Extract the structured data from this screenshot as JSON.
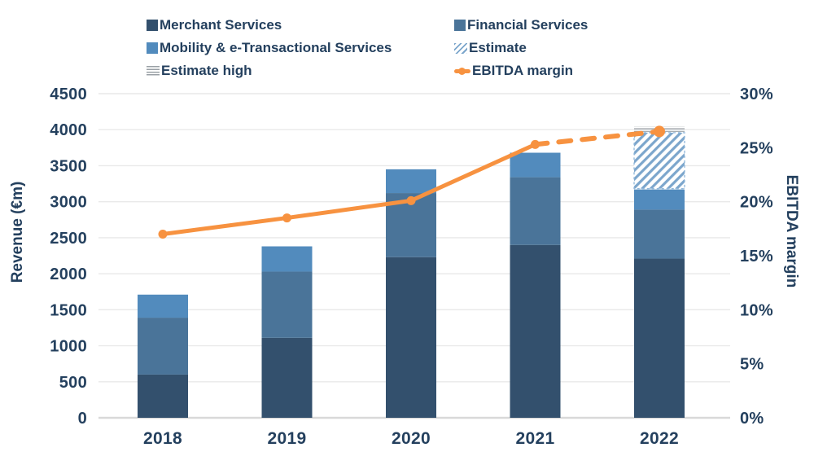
{
  "legend": {
    "items": [
      {
        "label": "Merchant Services",
        "swatch": "solid",
        "color": "#33506d"
      },
      {
        "label": "Financial Services",
        "swatch": "solid",
        "color": "#4a7499"
      },
      {
        "label": "Mobility & e-Transactional Services",
        "swatch": "solid",
        "color": "#528bbd"
      },
      {
        "label": "Estimate",
        "swatch": "hatch",
        "color": "#7ca6cc"
      },
      {
        "label": "Estimate high",
        "swatch": "hlines",
        "color": "#9aa0a6"
      },
      {
        "label": "EBITDA margin",
        "swatch": "line-dot",
        "color": "#f79240"
      }
    ]
  },
  "chart_data": {
    "type": "bar",
    "subtype": "stacked-bars-with-line-overlay",
    "categories": [
      "2018",
      "2019",
      "2020",
      "2021",
      "2022"
    ],
    "series": [
      {
        "name": "Merchant Services",
        "kind": "bar",
        "color": "#33506d",
        "values": [
          600,
          1110,
          2230,
          2400,
          2210
        ]
      },
      {
        "name": "Financial Services",
        "kind": "bar",
        "color": "#4a7499",
        "values": [
          790,
          920,
          890,
          940,
          680
        ]
      },
      {
        "name": "Mobility & e-Transactional Services",
        "kind": "bar",
        "color": "#528bbd",
        "values": [
          320,
          350,
          330,
          340,
          280
        ]
      },
      {
        "name": "Estimate",
        "kind": "bar",
        "pattern": "diagonal-hatch",
        "color": "#7ca6cc",
        "values": [
          0,
          0,
          0,
          0,
          800
        ]
      },
      {
        "name": "Estimate high",
        "kind": "bar",
        "pattern": "horizontal-lines",
        "color": "#9aa0a6",
        "values": [
          0,
          0,
          0,
          0,
          70
        ]
      },
      {
        "name": "EBITDA margin",
        "kind": "line",
        "axis": "right",
        "color": "#f79240",
        "values": [
          17.0,
          18.5,
          20.1,
          25.3,
          26.5
        ],
        "dashed_from_index": 3
      }
    ],
    "stacked_totals": [
      1710,
      2380,
      3450,
      3680,
      3170
    ],
    "stacked_totals_incl_estimates": [
      1710,
      2380,
      3450,
      3680,
      4040
    ],
    "y_left": {
      "label": "Revenue (€m)",
      "min": 0,
      "max": 4500,
      "step": 500,
      "ticks": [
        "0",
        "500",
        "1000",
        "1500",
        "2000",
        "2500",
        "3000",
        "3500",
        "4000",
        "4500"
      ]
    },
    "y_right": {
      "label": "EBITDA margin",
      "min": 0,
      "max": 30,
      "step": 5,
      "ticks": [
        "0%",
        "5%",
        "10%",
        "15%",
        "20%",
        "25%",
        "30%"
      ]
    },
    "grid": "horizontal",
    "legend_position": "top"
  },
  "colors": {
    "text": "#24405e",
    "gridline": "#e9e9e9",
    "axis_line": "#d9d9d9",
    "estimate_border": "#8fb6da",
    "background": "#ffffff"
  }
}
